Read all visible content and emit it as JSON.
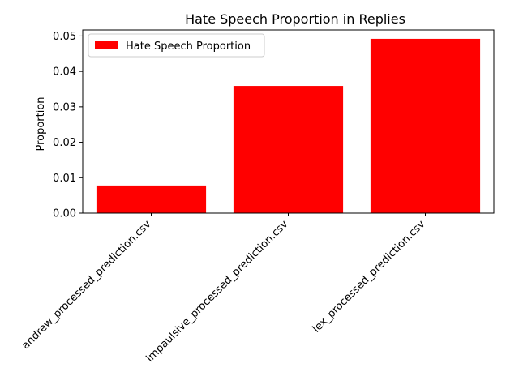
{
  "chart_data": {
    "type": "bar",
    "title": "Hate Speech Proportion in Replies",
    "xlabel": "",
    "ylabel": "Proportion",
    "categories": [
      "andrew_processed_prediction.csv",
      "impaulsive_processed_prediction.csv",
      "lex_processed_prediction.csv"
    ],
    "series": [
      {
        "name": "Hate Speech Proportion",
        "values": [
          0.0078,
          0.0359,
          0.0492
        ],
        "color": "#ff0000"
      }
    ],
    "ylim": [
      0,
      0.0517
    ],
    "yticks": [
      0.0,
      0.01,
      0.02,
      0.03,
      0.04,
      0.05
    ],
    "ytick_labels": [
      "0.00",
      "0.01",
      "0.02",
      "0.03",
      "0.04",
      "0.05"
    ],
    "grid": false,
    "legend_position": "top-left"
  }
}
